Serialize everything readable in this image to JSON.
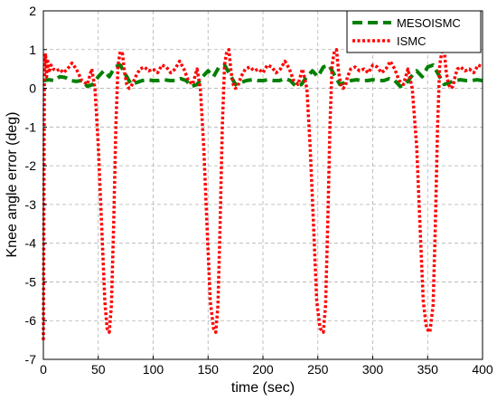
{
  "chart_data": {
    "type": "line",
    "xlabel": "time (sec)",
    "ylabel": "Knee angle error (deg)",
    "xlim": [
      0,
      400
    ],
    "ylim": [
      -7,
      2
    ],
    "xticks": [
      "0",
      "50",
      "100",
      "150",
      "200",
      "250",
      "300",
      "350",
      "400"
    ],
    "yticks": [
      "2",
      "1",
      "0",
      "-1",
      "-2",
      "-3",
      "-4",
      "-5",
      "-6",
      "-7"
    ],
    "grid": true,
    "legend_position": "top-right",
    "series": [
      {
        "name": "MESOISMC",
        "color": "#008000",
        "style": "dashed",
        "x": [
          0,
          5,
          10,
          15,
          20,
          25,
          30,
          35,
          40,
          45,
          50,
          55,
          60,
          65,
          70,
          75,
          80,
          85,
          90,
          95,
          100,
          105,
          110,
          115,
          120,
          125,
          130,
          135,
          140,
          145,
          150,
          155,
          160,
          165,
          170,
          175,
          180,
          185,
          190,
          195,
          200,
          205,
          210,
          215,
          220,
          225,
          230,
          235,
          240,
          245,
          250,
          255,
          260,
          265,
          270,
          275,
          280,
          285,
          290,
          295,
          300,
          305,
          310,
          315,
          320,
          325,
          330,
          335,
          340,
          345,
          350,
          355,
          360,
          365,
          370,
          375,
          380,
          385,
          390,
          395,
          400
        ],
        "values": [
          0.2,
          0.22,
          0.2,
          0.3,
          0.28,
          0.2,
          0.18,
          0.2,
          0.05,
          0.1,
          0.3,
          0.45,
          0.3,
          0.55,
          0.6,
          0.35,
          0.1,
          0.15,
          0.2,
          0.22,
          0.2,
          0.2,
          0.22,
          0.2,
          0.2,
          0.25,
          0.2,
          0.05,
          0.1,
          0.3,
          0.45,
          0.3,
          0.55,
          0.6,
          0.35,
          0.1,
          0.15,
          0.2,
          0.22,
          0.2,
          0.2,
          0.22,
          0.2,
          0.2,
          0.25,
          0.2,
          0.05,
          0.1,
          0.3,
          0.45,
          0.3,
          0.55,
          0.6,
          0.35,
          0.1,
          0.15,
          0.2,
          0.22,
          0.2,
          0.2,
          0.22,
          0.2,
          0.2,
          0.25,
          0.2,
          0.05,
          0.1,
          0.3,
          0.45,
          0.3,
          0.55,
          0.6,
          0.35,
          0.1,
          0.15,
          0.2,
          0.22,
          0.2,
          0.2,
          0.22,
          0.2
        ]
      },
      {
        "name": "ISMC",
        "color": "#ff0000",
        "style": "dotted",
        "x": [
          0,
          1,
          2,
          3,
          4,
          5,
          7,
          9,
          12,
          15,
          18,
          22,
          26,
          30,
          35,
          40,
          44,
          47,
          50,
          53,
          56,
          58,
          60,
          62,
          64,
          66,
          68,
          70,
          72,
          74,
          76,
          78,
          80,
          84,
          88,
          92,
          96,
          100,
          104,
          108,
          112,
          116,
          120,
          124,
          128,
          132,
          136,
          140,
          143,
          146,
          149,
          152,
          155,
          157,
          159,
          161,
          163,
          165,
          167,
          169,
          171,
          173,
          175,
          177,
          180,
          184,
          188,
          192,
          196,
          200,
          204,
          208,
          212,
          216,
          220,
          224,
          228,
          232,
          236,
          240,
          243,
          246,
          249,
          252,
          255,
          257,
          259,
          261,
          263,
          265,
          267,
          269,
          271,
          273,
          275,
          277,
          280,
          284,
          288,
          292,
          296,
          300,
          304,
          308,
          312,
          316,
          320,
          324,
          328,
          332,
          336,
          340,
          343,
          346,
          349,
          352,
          355,
          357,
          359,
          361,
          363,
          365,
          367,
          369,
          371,
          373,
          375,
          377,
          380,
          384,
          388,
          392,
          396,
          400
        ],
        "values": [
          -6.5,
          0.5,
          0.9,
          0.3,
          0.7,
          0.4,
          0.6,
          0.5,
          0.45,
          0.5,
          0.4,
          0.5,
          0.65,
          0.5,
          0.2,
          0.1,
          0.5,
          0.0,
          -1.5,
          -3.5,
          -5.5,
          -6.2,
          -6.3,
          -5.6,
          -3.5,
          -1.0,
          0.6,
          0.95,
          0.9,
          0.4,
          0.1,
          0.0,
          0.05,
          0.3,
          0.5,
          0.55,
          0.45,
          0.5,
          0.4,
          0.6,
          0.55,
          0.4,
          0.5,
          0.7,
          0.5,
          0.2,
          0.1,
          0.5,
          0.0,
          -1.5,
          -3.5,
          -5.5,
          -6.2,
          -6.3,
          -5.6,
          -3.5,
          -1.0,
          0.6,
          0.95,
          1.0,
          0.4,
          0.1,
          0.0,
          0.05,
          0.3,
          0.5,
          0.55,
          0.45,
          0.5,
          0.4,
          0.6,
          0.55,
          0.4,
          0.5,
          0.7,
          0.5,
          0.2,
          0.1,
          0.5,
          0.0,
          -1.5,
          -3.5,
          -5.5,
          -6.2,
          -6.3,
          -5.6,
          -3.5,
          -1.0,
          0.6,
          0.95,
          1.0,
          0.4,
          0.1,
          0.0,
          0.05,
          0.3,
          0.5,
          0.55,
          0.45,
          0.5,
          0.4,
          0.6,
          0.55,
          0.4,
          0.5,
          0.7,
          0.5,
          0.2,
          0.1,
          0.5,
          0.0,
          -1.5,
          -3.5,
          -5.5,
          -6.2,
          -6.3,
          -5.6,
          -3.5,
          -1.0,
          0.6,
          0.95,
          1.0,
          0.4,
          0.1,
          0.0,
          0.05,
          0.3,
          0.5,
          0.55,
          0.45,
          0.5,
          0.4,
          0.6,
          0.55
        ]
      }
    ]
  }
}
